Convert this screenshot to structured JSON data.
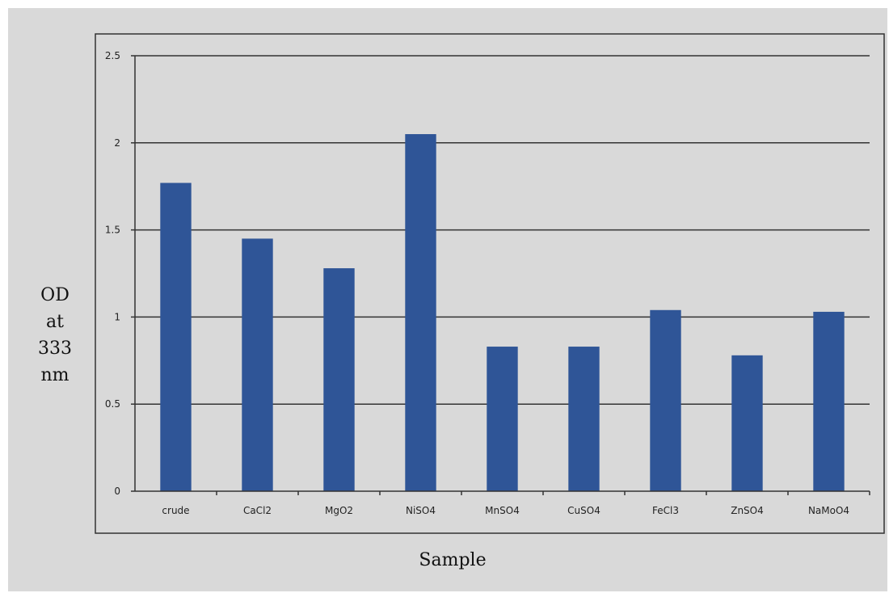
{
  "colors": {
    "background": "#d9d9d9",
    "bar": "#2f5597",
    "gridline": "#333333"
  },
  "chart_data": {
    "type": "bar",
    "categories": [
      "crude",
      "CaCl2",
      "MgO2",
      "NiSO4",
      "MnSO4",
      "CuSO4",
      "FeCl3",
      "ZnSO4",
      "NaMoO4"
    ],
    "values": [
      1.77,
      1.45,
      1.28,
      2.05,
      0.83,
      0.83,
      1.04,
      0.78,
      1.03
    ],
    "title": "",
    "xlabel": "Sample",
    "ylabel_lines": [
      "OD",
      "at",
      "333",
      "nm"
    ],
    "ylim": [
      0,
      2.5
    ],
    "yticks": [
      "0",
      "0.5",
      "1",
      "1.5",
      "2",
      "2.5"
    ],
    "ytick_values": [
      0,
      0.5,
      1,
      1.5,
      2,
      2.5
    ],
    "grid": true,
    "legend": "none"
  }
}
